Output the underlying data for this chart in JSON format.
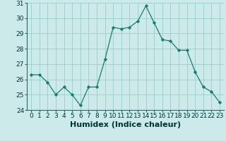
{
  "x": [
    0,
    1,
    2,
    3,
    4,
    5,
    6,
    7,
    8,
    9,
    10,
    11,
    12,
    13,
    14,
    15,
    16,
    17,
    18,
    19,
    20,
    21,
    22,
    23
  ],
  "y": [
    26.3,
    26.3,
    25.8,
    25.0,
    25.5,
    25.0,
    24.3,
    25.5,
    25.5,
    27.3,
    29.4,
    29.3,
    29.4,
    29.8,
    30.8,
    29.7,
    28.6,
    28.5,
    27.9,
    27.9,
    26.5,
    25.5,
    25.2,
    24.5
  ],
  "xlabel": "Humidex (Indice chaleur)",
  "ylim": [
    24,
    31
  ],
  "yticks": [
    24,
    25,
    26,
    27,
    28,
    29,
    30,
    31
  ],
  "xticks": [
    0,
    1,
    2,
    3,
    4,
    5,
    6,
    7,
    8,
    9,
    10,
    11,
    12,
    13,
    14,
    15,
    16,
    17,
    18,
    19,
    20,
    21,
    22,
    23
  ],
  "line_color": "#1a7a6e",
  "marker_color": "#1a7a6e",
  "bg_color": "#cceaea",
  "grid_color": "#99cccc",
  "xlabel_fontsize": 8,
  "tick_fontsize": 6.5
}
